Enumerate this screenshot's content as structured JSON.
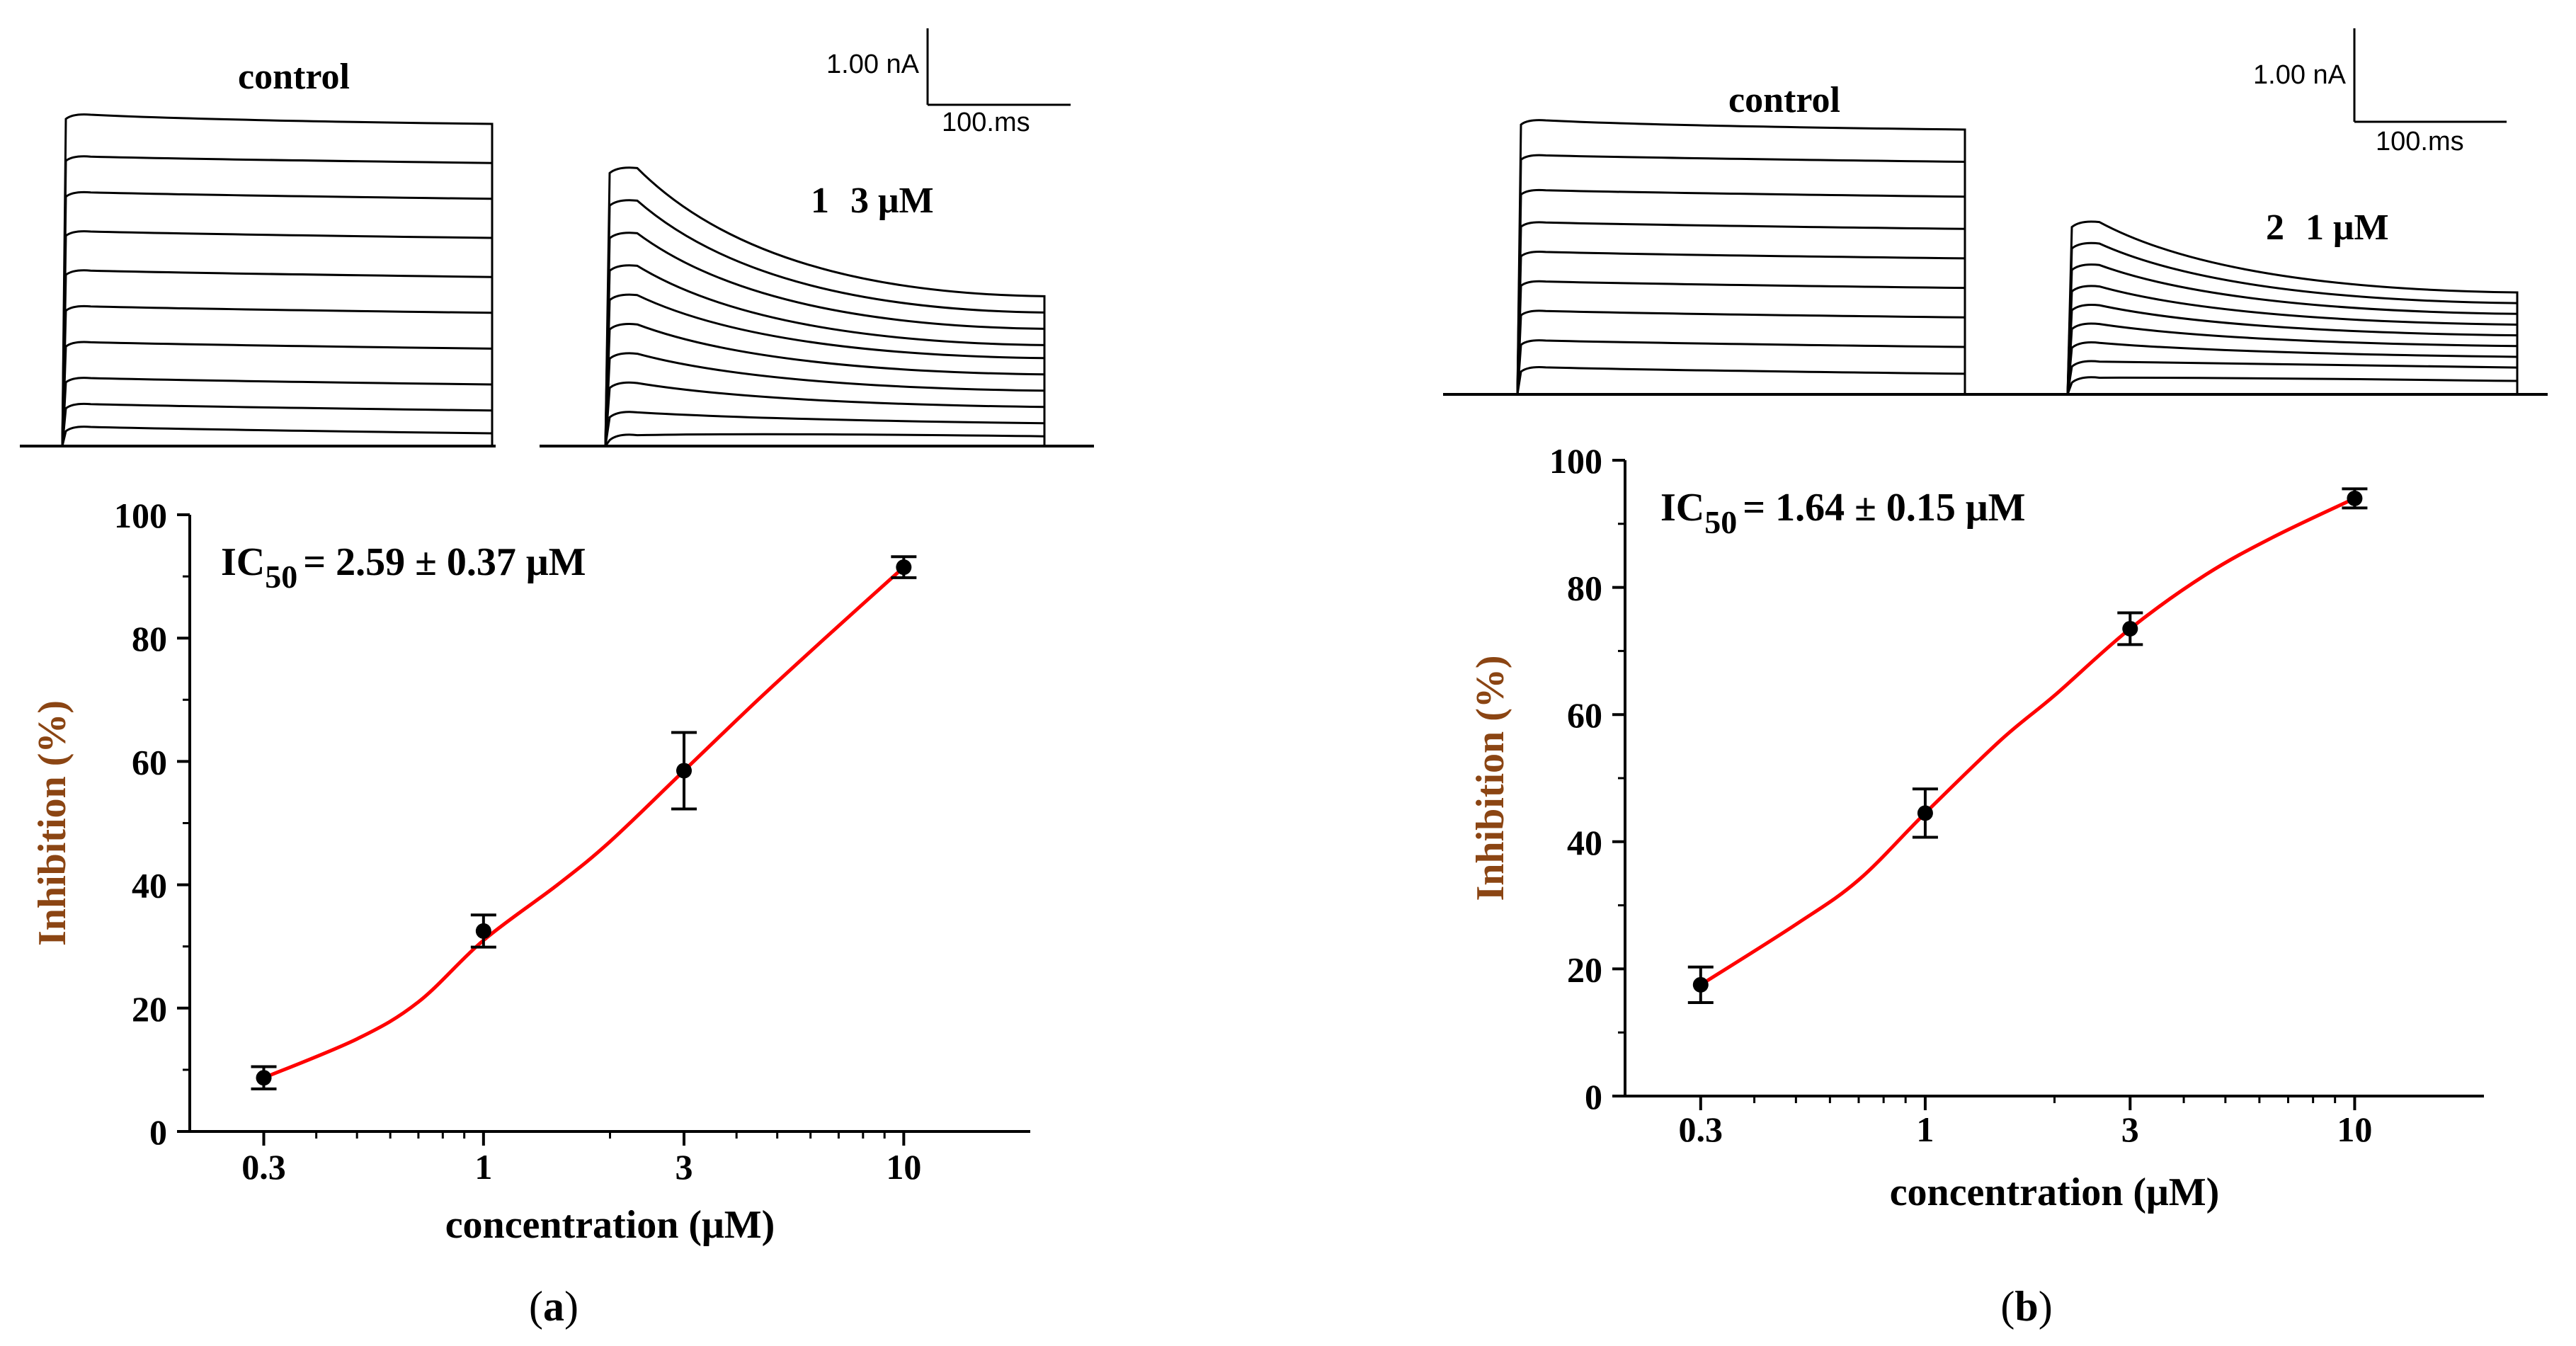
{
  "panels": [
    {
      "id": "a",
      "caption_open": "(",
      "caption_letter": "a",
      "caption_close": ")",
      "traces": {
        "control_label": "control",
        "compound_number": "1",
        "compound_conc": "3 μM",
        "scale_current": "1.00 nA",
        "scale_time": "100.ms",
        "control_levels": [
          1.0,
          0.88,
          0.77,
          0.65,
          0.53,
          0.42,
          0.31,
          0.2,
          0.12,
          0.05
        ],
        "drug_peak_levels": [
          0.86,
          0.76,
          0.66,
          0.56,
          0.47,
          0.38,
          0.29,
          0.2,
          0.11,
          0.04
        ],
        "drug_end_levels": [
          0.46,
          0.41,
          0.36,
          0.31,
          0.27,
          0.22,
          0.17,
          0.12,
          0.07,
          0.03
        ]
      },
      "ic50_prefix": "IC",
      "ic50_sub": "50",
      "ic50_value": "= 2.59 ± 0.37 μM",
      "chart_data": {
        "type": "scatter",
        "xscale": "log",
        "x": [
          0.3,
          1,
          3,
          10
        ],
        "y": [
          8.7,
          32.5,
          58.5,
          91.5
        ],
        "yerr": [
          1.8,
          2.6,
          6.2,
          1.7
        ],
        "fit_x": [
          0.3,
          0.5,
          0.7,
          1.0,
          1.5,
          2.0,
          3.0,
          4.5,
          6.5,
          10.0
        ],
        "fit_y": [
          8.7,
          15.0,
          21.0,
          31.0,
          40.0,
          47.0,
          58.5,
          70.0,
          80.0,
          91.5
        ],
        "xticks": [
          "0.3",
          "1",
          "3",
          "10"
        ],
        "xtick_values": [
          0.3,
          1,
          3,
          10
        ],
        "xlim": [
          0.2,
          20
        ],
        "yticks": [
          0,
          20,
          40,
          60,
          80,
          100
        ],
        "ylim": [
          0,
          100
        ],
        "xlabel": "concentration (μM)",
        "ylabel": "Inhibition (%)",
        "fit_color": "#ff0000",
        "marker_color": "#000000",
        "ylabel_color": "#8b4513"
      }
    },
    {
      "id": "b",
      "caption_open": "(",
      "caption_letter": "b",
      "caption_close": ")",
      "traces": {
        "control_label": "control",
        "compound_number": "2",
        "compound_conc": "1 μM",
        "scale_current": "1.00 nA",
        "scale_time": "100.ms",
        "control_levels": [
          1.0,
          0.88,
          0.75,
          0.63,
          0.52,
          0.41,
          0.3,
          0.19,
          0.09
        ],
        "drug_peak_levels": [
          0.65,
          0.57,
          0.49,
          0.41,
          0.34,
          0.27,
          0.2,
          0.13,
          0.07
        ],
        "drug_end_levels": [
          0.38,
          0.34,
          0.3,
          0.26,
          0.22,
          0.18,
          0.14,
          0.1,
          0.05
        ]
      },
      "ic50_prefix": "IC",
      "ic50_sub": "50",
      "ic50_value": "= 1.64 ± 0.15 μM",
      "chart_data": {
        "type": "scatter",
        "xscale": "log",
        "x": [
          0.3,
          1,
          3,
          10
        ],
        "y": [
          17.5,
          44.5,
          73.5,
          94.0
        ],
        "yerr": [
          2.8,
          3.8,
          2.5,
          1.5
        ],
        "fit_x": [
          0.3,
          0.5,
          0.7,
          1.0,
          1.5,
          2.0,
          3.0,
          4.5,
          6.5,
          10.0
        ],
        "fit_y": [
          17.5,
          27.0,
          34.0,
          44.5,
          56.0,
          63.0,
          73.5,
          82.0,
          88.0,
          94.0
        ],
        "xticks": [
          "0.3",
          "1",
          "3",
          "10"
        ],
        "xtick_values": [
          0.3,
          1,
          3,
          10
        ],
        "xlim": [
          0.2,
          20
        ],
        "yticks": [
          0,
          20,
          40,
          60,
          80,
          100
        ],
        "ylim": [
          0,
          100
        ],
        "xlabel": "concentration (μM)",
        "ylabel": "Inhibition (%)",
        "fit_color": "#ff0000",
        "marker_color": "#000000",
        "ylabel_color": "#8b4513"
      }
    }
  ]
}
